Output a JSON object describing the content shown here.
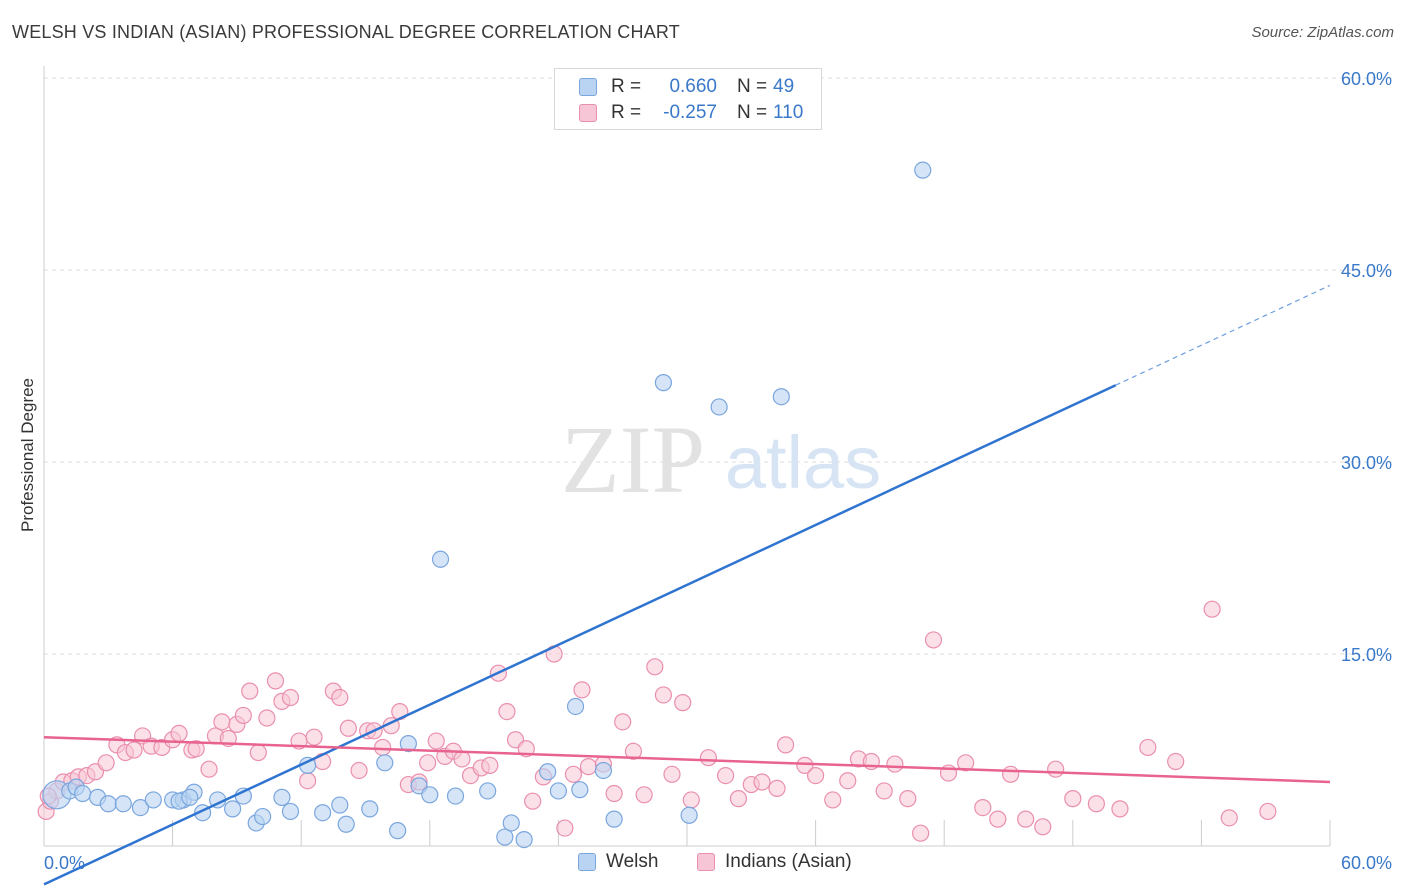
{
  "title": "WELSH VS INDIAN (ASIAN) PROFESSIONAL DEGREE CORRELATION CHART",
  "source": "Source: ZipAtlas.com",
  "watermark": {
    "zip": "ZIP",
    "atlas": "atlas"
  },
  "legend": {
    "r_label": "R =",
    "n_label": "N =",
    "rows": [
      {
        "name": "Welsh",
        "r": "0.660",
        "n": "49"
      },
      {
        "name": "Indians (Asian)",
        "r": "-0.257",
        "n": "110"
      }
    ]
  },
  "colors": {
    "welsh_fill": "#b9d3f2",
    "welsh_stroke": "#7aa6de",
    "welsh_line": "#2f74d0",
    "indian_fill": "#f7c6d6",
    "indian_stroke": "#ea8fae",
    "indian_line": "#e8638f",
    "tick_label": "#3a78c9"
  },
  "chart_data": {
    "type": "scatter",
    "title": "WELSH VS INDIAN (ASIAN) PROFESSIONAL DEGREE CORRELATION CHART",
    "ylabel": "Professional Degree",
    "xlabel": "",
    "xlim": [
      0,
      60
    ],
    "ylim": [
      0,
      60
    ],
    "x_tick_labels": [
      "0.0%",
      "60.0%"
    ],
    "y_ticks": [
      15,
      30,
      45,
      60
    ],
    "y_tick_labels": [
      "15.0%",
      "30.0%",
      "45.0%",
      "60.0%"
    ],
    "grid": "horizontal dashed",
    "legend_position": "top-center",
    "series": [
      {
        "name": "Welsh",
        "points": [
          [
            0.6,
            4.0
          ],
          [
            1.2,
            4.3
          ],
          [
            1.5,
            4.6
          ],
          [
            1.8,
            4.1
          ],
          [
            2.5,
            3.8
          ],
          [
            3.0,
            3.3
          ],
          [
            3.7,
            3.3
          ],
          [
            4.5,
            3.0
          ],
          [
            5.1,
            3.6
          ],
          [
            6.0,
            3.6
          ],
          [
            6.5,
            3.6
          ],
          [
            7.0,
            4.2
          ],
          [
            6.3,
            3.5
          ],
          [
            6.8,
            3.8
          ],
          [
            7.4,
            2.6
          ],
          [
            8.1,
            3.6
          ],
          [
            8.8,
            2.9
          ],
          [
            9.3,
            3.9
          ],
          [
            9.9,
            1.8
          ],
          [
            10.2,
            2.3
          ],
          [
            11.1,
            3.8
          ],
          [
            11.5,
            2.7
          ],
          [
            12.3,
            6.3
          ],
          [
            13.0,
            2.6
          ],
          [
            13.8,
            3.2
          ],
          [
            14.1,
            1.7
          ],
          [
            15.2,
            2.9
          ],
          [
            15.9,
            6.5
          ],
          [
            16.5,
            1.2
          ],
          [
            17.0,
            8.0
          ],
          [
            17.5,
            4.7
          ],
          [
            18.0,
            4.0
          ],
          [
            18.5,
            22.4
          ],
          [
            19.2,
            3.9
          ],
          [
            20.7,
            4.3
          ],
          [
            21.5,
            0.7
          ],
          [
            21.8,
            1.8
          ],
          [
            22.4,
            0.5
          ],
          [
            23.5,
            5.8
          ],
          [
            24.0,
            4.3
          ],
          [
            24.8,
            10.9
          ],
          [
            25.0,
            4.4
          ],
          [
            26.1,
            5.9
          ],
          [
            26.6,
            2.1
          ],
          [
            28.9,
            36.2
          ],
          [
            30.1,
            2.4
          ],
          [
            31.5,
            34.3
          ],
          [
            34.4,
            35.1
          ],
          [
            41.0,
            52.8
          ]
        ],
        "trend": {
          "x1": 0,
          "y1": -3.0,
          "x2": 50,
          "y2": 36.0,
          "dash_to_x": 60,
          "dash_to_y": 43.8
        }
      },
      {
        "name": "Indians (Asian)",
        "points": [
          [
            0.1,
            2.7
          ],
          [
            0.3,
            3.5
          ],
          [
            0.6,
            4.3
          ],
          [
            0.9,
            5.0
          ],
          [
            1.3,
            5.1
          ],
          [
            1.6,
            5.4
          ],
          [
            2.0,
            5.5
          ],
          [
            2.4,
            5.8
          ],
          [
            2.9,
            6.5
          ],
          [
            3.4,
            7.9
          ],
          [
            3.8,
            7.3
          ],
          [
            4.2,
            7.5
          ],
          [
            4.6,
            8.6
          ],
          [
            5.0,
            7.8
          ],
          [
            5.5,
            7.7
          ],
          [
            6.0,
            8.3
          ],
          [
            6.3,
            8.8
          ],
          [
            6.9,
            7.5
          ],
          [
            7.1,
            7.6
          ],
          [
            7.7,
            6.0
          ],
          [
            8.0,
            8.6
          ],
          [
            8.3,
            9.7
          ],
          [
            8.6,
            8.4
          ],
          [
            9.0,
            9.5
          ],
          [
            9.3,
            10.2
          ],
          [
            9.6,
            12.1
          ],
          [
            10.0,
            7.3
          ],
          [
            10.4,
            10.0
          ],
          [
            10.8,
            12.9
          ],
          [
            11.1,
            11.3
          ],
          [
            11.5,
            11.6
          ],
          [
            11.9,
            8.2
          ],
          [
            12.3,
            5.1
          ],
          [
            12.6,
            8.5
          ],
          [
            13.0,
            6.6
          ],
          [
            13.5,
            12.1
          ],
          [
            13.8,
            11.6
          ],
          [
            14.2,
            9.2
          ],
          [
            14.7,
            5.9
          ],
          [
            15.1,
            9.0
          ],
          [
            15.4,
            9.0
          ],
          [
            15.8,
            7.7
          ],
          [
            16.2,
            9.4
          ],
          [
            16.6,
            10.5
          ],
          [
            17.0,
            4.8
          ],
          [
            17.5,
            5.0
          ],
          [
            17.9,
            6.5
          ],
          [
            18.3,
            8.2
          ],
          [
            18.7,
            7.0
          ],
          [
            19.1,
            7.4
          ],
          [
            19.5,
            6.8
          ],
          [
            19.9,
            5.5
          ],
          [
            20.4,
            6.1
          ],
          [
            20.8,
            6.3
          ],
          [
            21.2,
            13.5
          ],
          [
            21.6,
            10.5
          ],
          [
            22.0,
            8.3
          ],
          [
            22.5,
            7.6
          ],
          [
            22.8,
            3.5
          ],
          [
            23.3,
            5.4
          ],
          [
            23.8,
            15.0
          ],
          [
            24.3,
            1.4
          ],
          [
            24.7,
            5.6
          ],
          [
            25.1,
            12.2
          ],
          [
            25.4,
            6.2
          ],
          [
            26.1,
            6.4
          ],
          [
            26.6,
            4.1
          ],
          [
            27.0,
            9.7
          ],
          [
            27.5,
            7.4
          ],
          [
            28.0,
            4.0
          ],
          [
            28.5,
            14.0
          ],
          [
            28.9,
            11.8
          ],
          [
            29.3,
            5.6
          ],
          [
            29.8,
            11.2
          ],
          [
            30.2,
            3.6
          ],
          [
            31.0,
            6.9
          ],
          [
            31.8,
            5.5
          ],
          [
            32.4,
            3.7
          ],
          [
            33.0,
            4.8
          ],
          [
            33.5,
            5.0
          ],
          [
            34.2,
            4.5
          ],
          [
            34.6,
            7.9
          ],
          [
            35.5,
            6.3
          ],
          [
            36.0,
            5.5
          ],
          [
            36.8,
            3.6
          ],
          [
            37.5,
            5.1
          ],
          [
            38.0,
            6.8
          ],
          [
            38.6,
            6.6
          ],
          [
            39.2,
            4.3
          ],
          [
            39.7,
            6.4
          ],
          [
            40.3,
            3.7
          ],
          [
            40.9,
            1.0
          ],
          [
            41.5,
            16.1
          ],
          [
            42.2,
            5.7
          ],
          [
            43.0,
            6.5
          ],
          [
            43.8,
            3.0
          ],
          [
            44.5,
            2.1
          ],
          [
            45.1,
            5.6
          ],
          [
            45.8,
            2.1
          ],
          [
            46.6,
            1.5
          ],
          [
            47.2,
            6.0
          ],
          [
            48.0,
            3.7
          ],
          [
            49.1,
            3.3
          ],
          [
            50.2,
            2.9
          ],
          [
            51.5,
            7.7
          ],
          [
            52.8,
            6.6
          ],
          [
            54.5,
            18.5
          ],
          [
            55.3,
            2.2
          ],
          [
            57.1,
            2.7
          ],
          [
            0.2,
            3.9
          ]
        ],
        "trend": {
          "x1": 0,
          "y1": 8.5,
          "x2": 60,
          "y2": 5.0
        }
      }
    ]
  }
}
